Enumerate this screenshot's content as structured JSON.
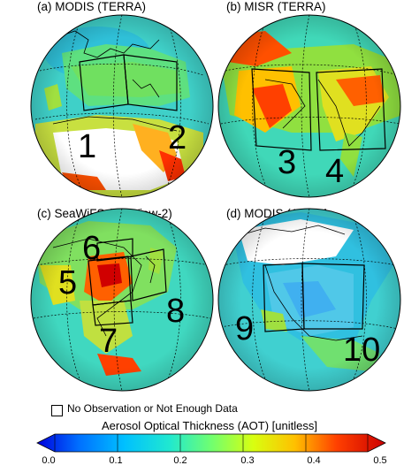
{
  "panels": [
    {
      "title": "(a) MODIS (TERRA)",
      "regions": [
        "1",
        "2"
      ]
    },
    {
      "title": "(b) MISR (TERRA)",
      "regions": [
        "3",
        "4"
      ]
    },
    {
      "title": "(c) SeaWiFS (OrbView-2)",
      "regions": [
        "5",
        "6",
        "7",
        "8"
      ]
    },
    {
      "title": "(d) MODIS (AQUA)",
      "regions": [
        "9",
        "10"
      ]
    }
  ],
  "legend": {
    "no_data_label": "No Observation or Not Enough Data"
  },
  "colorbar": {
    "title": "Aerosol Optical Thickness (AOT) [unitless]",
    "ticks": [
      "0.0",
      "0.1",
      "0.2",
      "0.3",
      "0.4",
      "0.5"
    ],
    "range": [
      0.0,
      0.5
    ],
    "colors": [
      "#0000dd",
      "#0080ff",
      "#00c8ff",
      "#40e0b0",
      "#80ff60",
      "#e0ff00",
      "#ffa000",
      "#ff2000",
      "#d00000"
    ]
  }
}
